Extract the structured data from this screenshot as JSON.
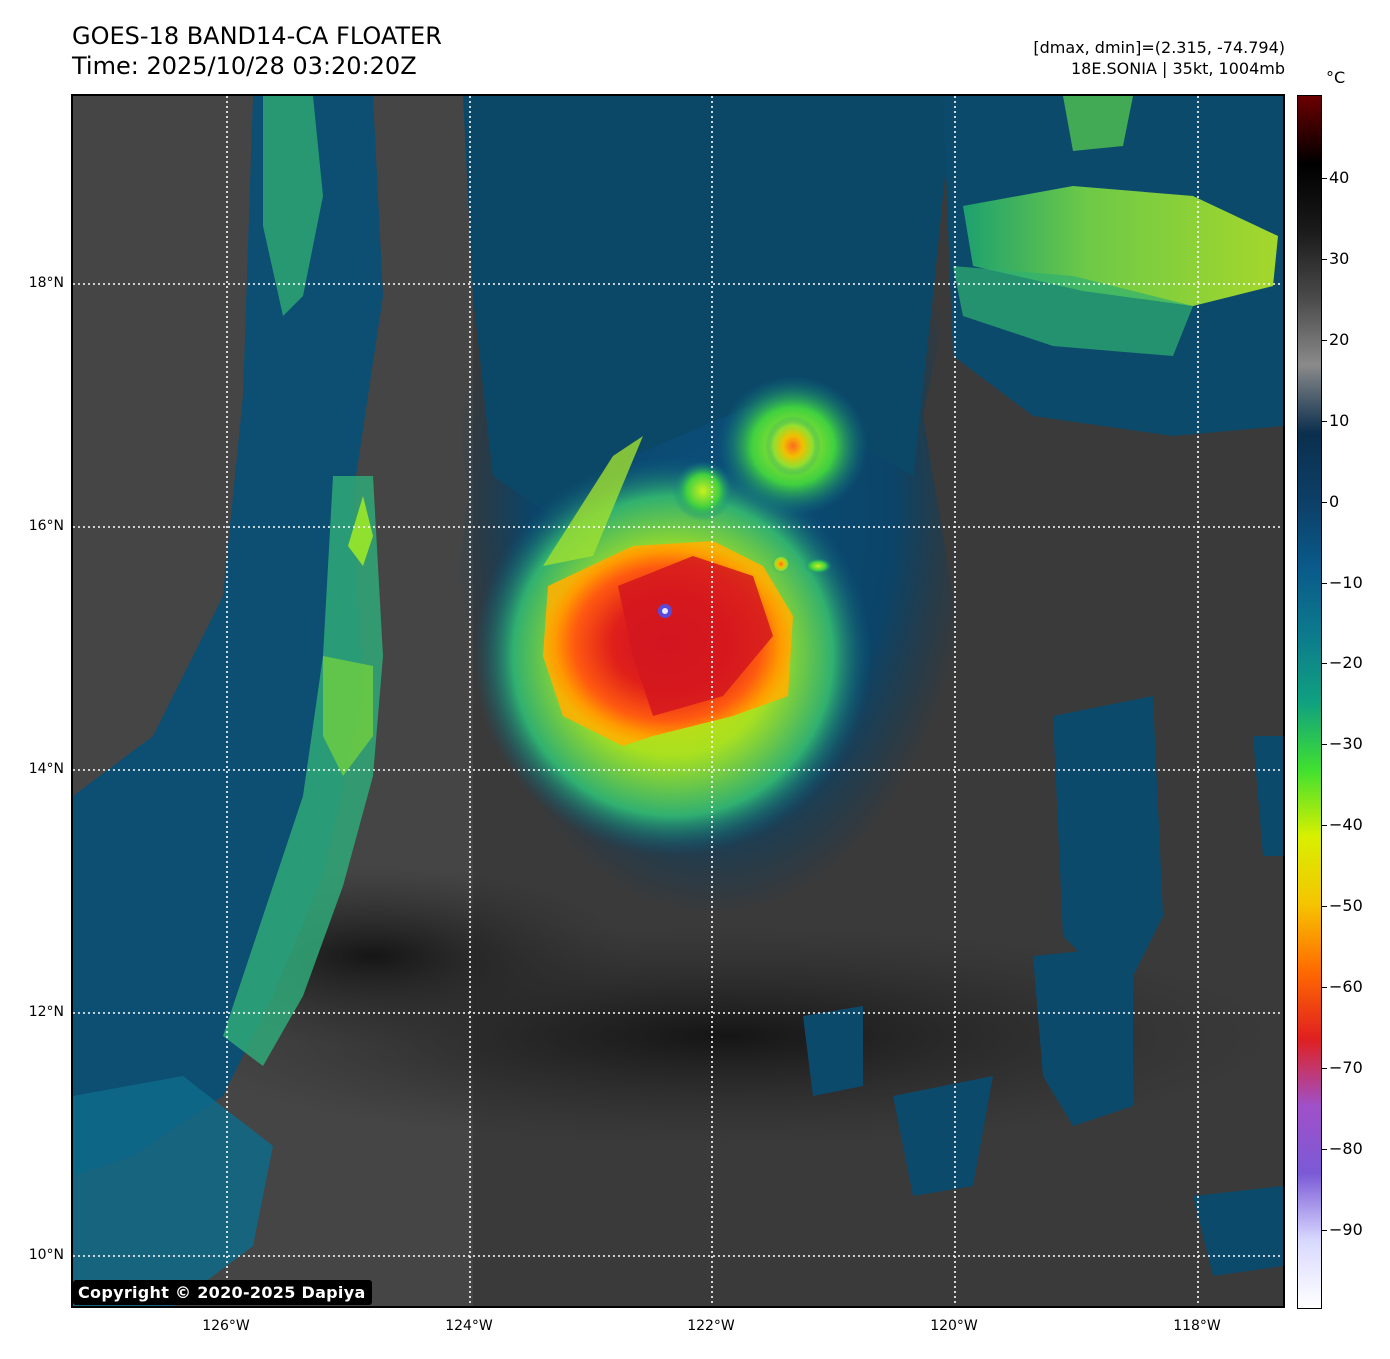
{
  "header": {
    "title_line1": "GOES-18 BAND14-CA FLOATER",
    "title_line2": "Time: 2025/10/28 03:20:20Z",
    "meta_line1": "[dmax, dmin]=(2.315, -74.794)",
    "meta_line2": "18E.SONIA | 35kt, 1004mb"
  },
  "map": {
    "lat_labels": [
      "18°N",
      "16°N",
      "14°N",
      "12°N",
      "10°N"
    ],
    "lon_labels": [
      "126°W",
      "124°W",
      "122°W",
      "120°W",
      "118°W"
    ]
  },
  "colorbar": {
    "unit": "°C",
    "ticks": [
      "40",
      "30",
      "20",
      "10",
      "0",
      "−10",
      "−20",
      "−30",
      "−40",
      "−50",
      "−60",
      "−70",
      "−80",
      "−90"
    ],
    "colors": [
      "#ffffff",
      "#d8d8ff",
      "#7b5ad6",
      "#a050c8",
      "#e02020",
      "#ff6a00",
      "#f5c400",
      "#d8f000",
      "#40e030",
      "#10a080",
      "#0c7a8c",
      "#0a5a8a",
      "#0c3f66",
      "#0b2f4d",
      "#8a8a8a",
      "#4a4a4a",
      "#1a1a1a",
      "#000000",
      "#6b0000"
    ]
  },
  "copyright": "Copyright © 2020-2025 Dapiya"
}
